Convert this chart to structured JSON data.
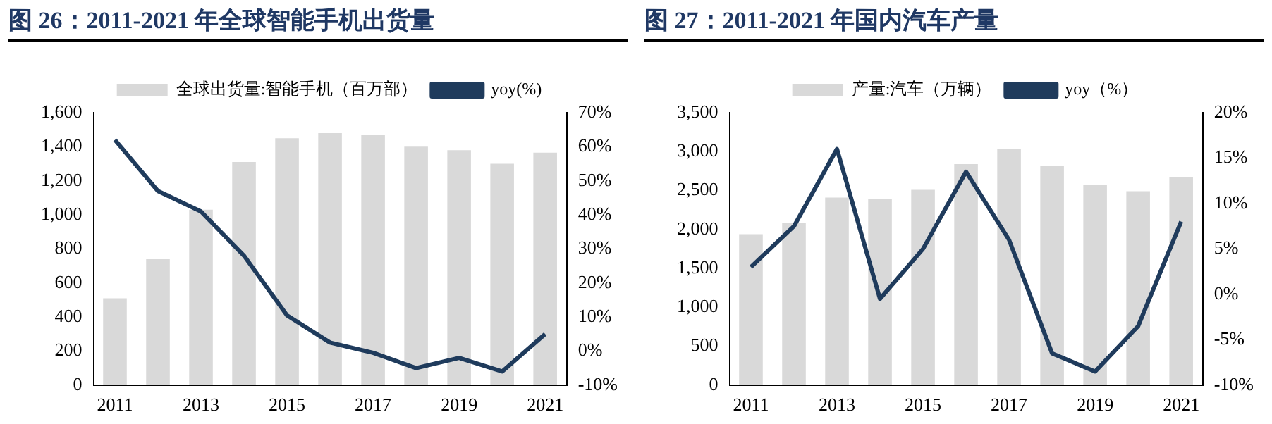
{
  "chart_data": [
    {
      "type": "bar",
      "title": "图 26：2011-2021 年全球智能手机出货量",
      "categories": [
        "2011",
        null,
        "2013",
        null,
        "2015",
        null,
        "2017",
        null,
        "2019",
        null,
        "2021"
      ],
      "series": [
        {
          "name": "全球出货量:智能手机（百万部）",
          "color": "#d9d9d9",
          "values": [
            510,
            740,
            1030,
            1310,
            1450,
            1480,
            1470,
            1400,
            1380,
            1300,
            1365
          ]
        },
        {
          "name": "yoy(%)",
          "type": "line",
          "axis": "y2",
          "color": "#1f3b5c",
          "values": [
            62,
            47,
            41,
            28,
            10.5,
            2.5,
            -0.5,
            -5,
            -2,
            -6,
            5
          ]
        }
      ],
      "ylim": [
        0,
        1600
      ],
      "yticks": [
        0,
        200,
        400,
        600,
        800,
        {
          "value": 1000,
          "label": "1,000"
        },
        {
          "value": 1200,
          "label": "1,200"
        },
        {
          "value": 1400,
          "label": "1,400"
        },
        {
          "value": 1600,
          "label": "1,600"
        }
      ],
      "y2lim": [
        -10,
        70
      ],
      "y2ticks": [
        {
          "value": -10,
          "label": "-10%"
        },
        {
          "value": 0,
          "label": "0%"
        },
        {
          "value": 10,
          "label": "10%"
        },
        {
          "value": 20,
          "label": "20%"
        },
        {
          "value": 30,
          "label": "30%"
        },
        {
          "value": 40,
          "label": "40%"
        },
        {
          "value": 50,
          "label": "50%"
        },
        {
          "value": 60,
          "label": "60%"
        },
        {
          "value": 70,
          "label": "70%"
        }
      ],
      "legend": "top",
      "grid": false,
      "marker": "none"
    },
    {
      "type": "bar",
      "title": "图 27：2011-2021 年国内汽车产量",
      "categories": [
        "2011",
        null,
        "2013",
        null,
        "2015",
        null,
        "2017",
        null,
        "2019",
        null,
        "2021"
      ],
      "series": [
        {
          "name": "产量:汽车（万辆）",
          "color": "#d9d9d9",
          "values": [
            1940,
            2080,
            2410,
            2390,
            2510,
            2840,
            3030,
            2820,
            2570,
            2490,
            2670
          ]
        },
        {
          "name": "yoy（%）",
          "type": "line",
          "axis": "y2",
          "color": "#1f3b5c",
          "values": [
            3,
            7.5,
            16,
            -0.5,
            5,
            13.5,
            6,
            -6.5,
            -8.5,
            -3.5,
            8
          ]
        }
      ],
      "ylim": [
        0,
        3500
      ],
      "yticks": [
        0,
        500,
        {
          "value": 1000,
          "label": "1,000"
        },
        {
          "value": 1500,
          "label": "1,500"
        },
        {
          "value": 2000,
          "label": "2,000"
        },
        {
          "value": 2500,
          "label": "2,500"
        },
        {
          "value": 3000,
          "label": "3,000"
        },
        {
          "value": 3500,
          "label": "3,500"
        }
      ],
      "y2lim": [
        -10,
        20
      ],
      "y2ticks": [
        {
          "value": -10,
          "label": "-10%"
        },
        {
          "value": -5,
          "label": "-5%"
        },
        {
          "value": 0,
          "label": "0%"
        },
        {
          "value": 5,
          "label": "5%"
        },
        {
          "value": 10,
          "label": "10%"
        },
        {
          "value": 15,
          "label": "15%"
        },
        {
          "value": 20,
          "label": "20%"
        }
      ],
      "legend": "top",
      "grid": false,
      "marker": "none"
    }
  ]
}
